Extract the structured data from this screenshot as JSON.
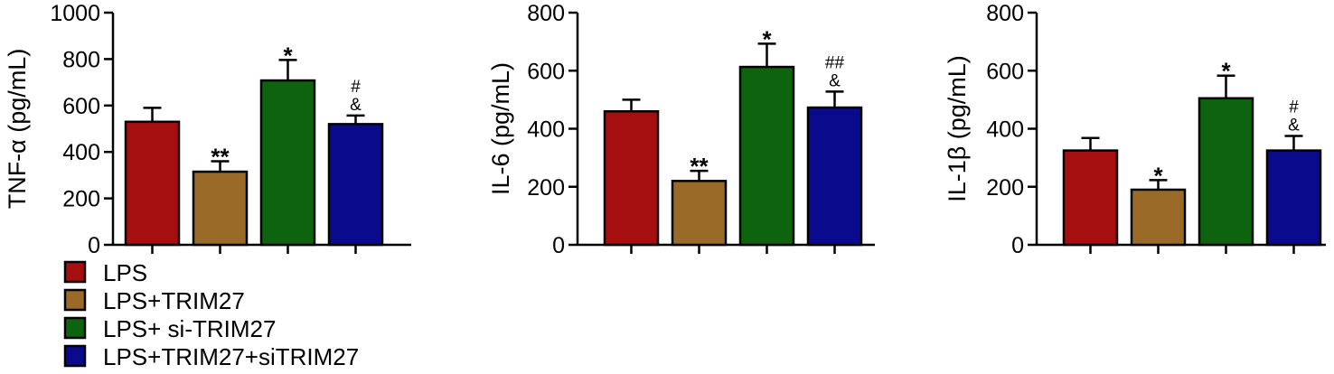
{
  "legend": {
    "placement": "bottom-left",
    "entries": [
      {
        "label": "LPS",
        "color": "#a50f0f"
      },
      {
        "label": "LPS+TRIM27",
        "color": "#9a6a28"
      },
      {
        "label": "LPS+ si-TRIM27",
        "color": "#0e640e"
      },
      {
        "label": "LPS+TRIM27+siTRIM27",
        "color": "#0a0a8c"
      }
    ]
  },
  "chart_data": [
    {
      "type": "bar",
      "ylabel": "TNF-α (pg/mL)",
      "ylim": [
        0,
        1000
      ],
      "yticks": [
        0,
        200,
        400,
        600,
        800,
        1000
      ],
      "categories": [
        "LPS",
        "LPS+TRIM27",
        "LPS+ si-TRIM27",
        "LPS+TRIM27+siTRIM27"
      ],
      "values": [
        530,
        315,
        708,
        520
      ],
      "errors": [
        60,
        45,
        88,
        37
      ],
      "annotations": [
        [],
        [
          "**"
        ],
        [
          "*"
        ],
        [
          "&",
          "#"
        ]
      ]
    },
    {
      "type": "bar",
      "ylabel": "IL-6 (pg/mL)",
      "ylim": [
        0,
        800
      ],
      "yticks": [
        0,
        200,
        400,
        600,
        800
      ],
      "categories": [
        "LPS",
        "LPS+TRIM27",
        "LPS+ si-TRIM27",
        "LPS+TRIM27+siTRIM27"
      ],
      "values": [
        460,
        220,
        613,
        473
      ],
      "errors": [
        40,
        35,
        80,
        55
      ],
      "annotations": [
        [],
        [
          "**"
        ],
        [
          "*"
        ],
        [
          "&",
          "##"
        ]
      ]
    },
    {
      "type": "bar",
      "ylabel": "IL-1β (pg/mL)",
      "ylim": [
        0,
        800
      ],
      "yticks": [
        0,
        200,
        400,
        600,
        800
      ],
      "categories": [
        "LPS",
        "LPS+TRIM27",
        "LPS+ si-TRIM27",
        "LPS+TRIM27+siTRIM27"
      ],
      "values": [
        325,
        190,
        505,
        325
      ],
      "errors": [
        43,
        33,
        78,
        50
      ],
      "annotations": [
        [],
        [
          "*"
        ],
        [
          "*"
        ],
        [
          "&",
          "#"
        ]
      ]
    }
  ]
}
